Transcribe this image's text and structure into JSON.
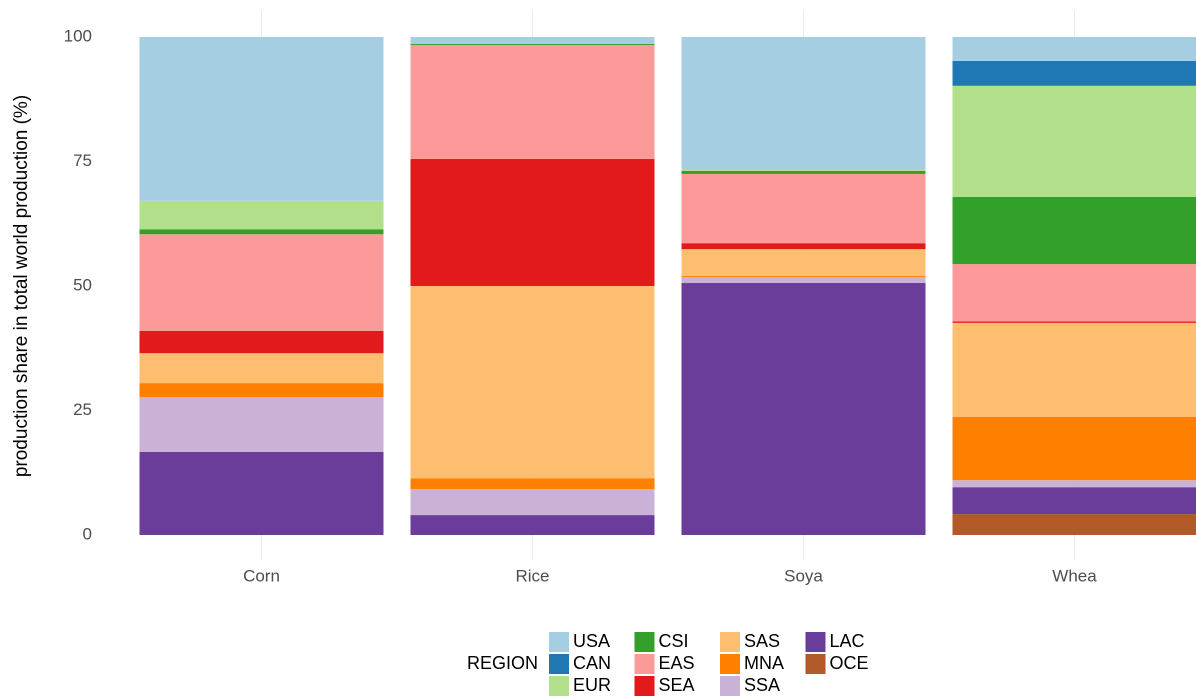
{
  "chart_data": {
    "type": "stacked_bar",
    "y_label": "production share in total world production (%)",
    "categories": [
      "Corn",
      "Rice",
      "Soya",
      "Whea"
    ],
    "ylim": [
      0,
      100
    ],
    "yticks": [
      0,
      25,
      50,
      75,
      100
    ],
    "legend_title": "REGION",
    "series": [
      {
        "name": "USA",
        "color": "#a6cee3",
        "values": [
          32.9,
          1.4,
          26.6,
          4.8
        ]
      },
      {
        "name": "CAN",
        "color": "#1f78b4",
        "values": [
          0,
          0,
          0,
          5.0
        ]
      },
      {
        "name": "EUR",
        "color": "#b2df8a",
        "values": [
          5.7,
          0,
          0.3,
          22.3
        ]
      },
      {
        "name": "CSI",
        "color": "#33a02c",
        "values": [
          1.0,
          0.2,
          0.6,
          13.5
        ]
      },
      {
        "name": "EAS",
        "color": "#fb9a99",
        "values": [
          19.4,
          22.9,
          13.9,
          11.5
        ]
      },
      {
        "name": "SEA",
        "color": "#e31a1c",
        "values": [
          4.5,
          25.5,
          1.2,
          0.3
        ]
      },
      {
        "name": "SAS",
        "color": "#fdbf6f",
        "values": [
          6.0,
          38.6,
          5.4,
          18.9
        ]
      },
      {
        "name": "MNA",
        "color": "#ff7f00",
        "values": [
          2.8,
          2.2,
          0.2,
          12.7
        ]
      },
      {
        "name": "SSA",
        "color": "#cab2d6",
        "values": [
          11.0,
          5.2,
          1.2,
          1.4
        ]
      },
      {
        "name": "LAC",
        "color": "#6a3d9a",
        "values": [
          16.7,
          4.0,
          50.6,
          5.4
        ]
      },
      {
        "name": "OCE",
        "color": "#b15928",
        "values": [
          0,
          0,
          0,
          4.2
        ]
      }
    ]
  }
}
